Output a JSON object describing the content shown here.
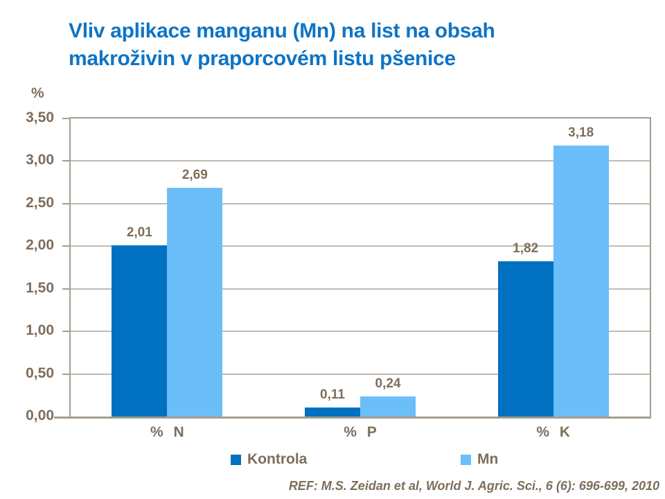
{
  "title": {
    "text": "Vliv aplikace manganu (Mn) na list na obsah makroživin v praporcovém listu pšenice",
    "lines": [
      "Vliv aplikace manganu (Mn) na list na obsah",
      "makroživin v praporcovém listu pšenice"
    ]
  },
  "y_axis": {
    "unit_label": "%",
    "tick_labels": [
      "0,00",
      "0,50",
      "1,00",
      "1,50",
      "2,00",
      "2,50",
      "3,00",
      "3,50"
    ]
  },
  "chart_data": {
    "type": "bar",
    "title": "Vliv aplikace manganu (Mn) na list na obsah makroživin v praporcovém listu pšenice",
    "categories": [
      "% N",
      "% P",
      "% K"
    ],
    "series": [
      {
        "name": "Kontrola",
        "color": "#0070C0",
        "values": [
          2.01,
          0.11,
          1.82
        ],
        "value_labels": [
          "2,01",
          "0,11",
          "1,82"
        ]
      },
      {
        "name": "Mn",
        "color": "#6CBEF9",
        "values": [
          2.69,
          0.24,
          3.18
        ],
        "value_labels": [
          "2,69",
          "0,24",
          "3,18"
        ]
      }
    ],
    "xlabel": "",
    "ylabel": "%",
    "ylim": [
      0,
      3.5
    ],
    "ytick_step": 0.5,
    "grid": true,
    "legend_position": "bottom"
  },
  "footer": {
    "reference": "REF: M.S. Zeidan et al, World J. Agric. Sci., 6 (6): 696-699, 2010"
  },
  "colors": {
    "title": "#0E74C6",
    "text": "#7D6E5B",
    "axis": "#A69D90",
    "gridline": "#C2BBAF",
    "series_kontrola": "#0070C0",
    "series_mn": "#6CBEF9"
  }
}
